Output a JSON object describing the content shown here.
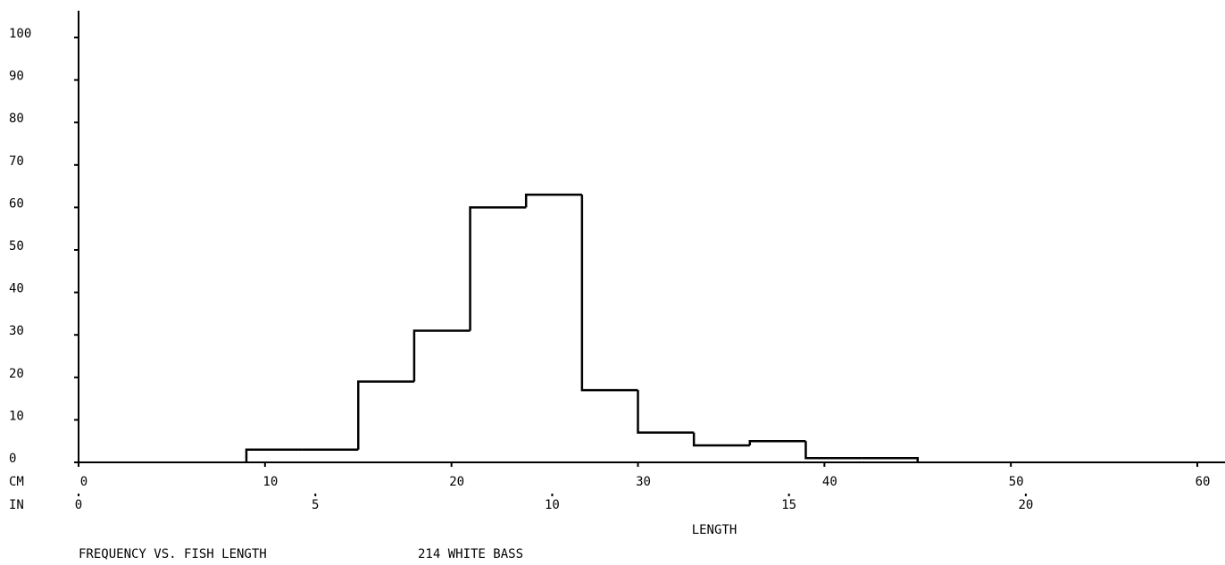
{
  "chart_data": {
    "type": "histogram",
    "title": "FREQUENCY VS. FISH LENGTH",
    "subtitle": "214 WHITE BASS",
    "x_label": "LENGTH",
    "x_unit_label": "CM",
    "x2_unit_label": "IN",
    "bins": [
      9,
      12,
      15,
      18,
      21,
      24,
      27,
      30,
      33,
      36,
      39,
      42,
      45
    ],
    "values": [
      3,
      3,
      19,
      31,
      60,
      63,
      17,
      7,
      4,
      5,
      1,
      1
    ],
    "color": "#000000",
    "xlim": [
      0,
      60
    ],
    "xticks": [
      0,
      10,
      20,
      30,
      40,
      50,
      60
    ],
    "x2lim": [
      0,
      23.622
    ],
    "x2ticks": [
      0,
      5,
      10,
      15,
      20
    ],
    "ylim": [
      0,
      100
    ],
    "yticks": [
      0,
      10,
      20,
      30,
      40,
      50,
      60,
      70,
      80,
      90,
      100
    ]
  }
}
